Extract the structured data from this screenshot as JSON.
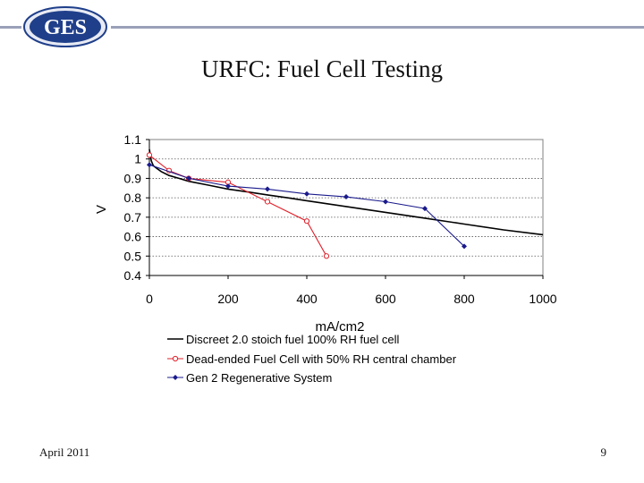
{
  "header": {
    "logo_text": "GES",
    "title": "URFC: Fuel Cell Testing"
  },
  "footer": {
    "date": "April 2011",
    "page_number": "9"
  },
  "colors": {
    "rule": "#9aa0b8",
    "logo_fill": "#1f3f8a",
    "series_black": "#000000",
    "series_red": "#e0202a",
    "series_blue": "#1a1a8c"
  },
  "chart_data": {
    "type": "line",
    "title": "",
    "xlabel": "mA/cm2",
    "ylabel": "V",
    "xlim": [
      0,
      1000
    ],
    "ylim": [
      0.4,
      1.1
    ],
    "xticks": [
      "0",
      "200",
      "400",
      "600",
      "800",
      "1000"
    ],
    "yticks": [
      "0.4",
      "0.5",
      "0.6",
      "0.7",
      "0.8",
      "0.9",
      "1",
      "1.1"
    ],
    "xtick_values": [
      0,
      200,
      400,
      600,
      800,
      1000
    ],
    "ytick_values": [
      0.4,
      0.5,
      0.6,
      0.7,
      0.8,
      0.9,
      1.0,
      1.1
    ],
    "grid": "horizontal-dotted",
    "legend_position": "bottom",
    "series": [
      {
        "name": "Discreet 2.0 stoich fuel 100% RH fuel cell",
        "marker": "none",
        "x": [
          0,
          5,
          10,
          20,
          30,
          50,
          75,
          100,
          150,
          200,
          250,
          300,
          350,
          400,
          450,
          500,
          600,
          700,
          800,
          900,
          1000
        ],
        "y": [
          1.05,
          0.99,
          0.965,
          0.95,
          0.935,
          0.915,
          0.9,
          0.885,
          0.865,
          0.845,
          0.83,
          0.815,
          0.8,
          0.785,
          0.77,
          0.755,
          0.725,
          0.695,
          0.665,
          0.635,
          0.61
        ]
      },
      {
        "name": "Dead-ended Fuel Cell with 50% RH central chamber",
        "marker": "circle",
        "x": [
          0,
          50,
          100,
          200,
          300,
          400,
          450
        ],
        "y": [
          1.02,
          0.94,
          0.9,
          0.88,
          0.78,
          0.68,
          0.5
        ]
      },
      {
        "name": "Gen 2 Regenerative System",
        "marker": "diamond",
        "x": [
          0,
          100,
          200,
          300,
          400,
          500,
          600,
          700,
          800
        ],
        "y": [
          0.97,
          0.9,
          0.86,
          0.845,
          0.82,
          0.805,
          0.78,
          0.745,
          0.55
        ]
      }
    ]
  }
}
